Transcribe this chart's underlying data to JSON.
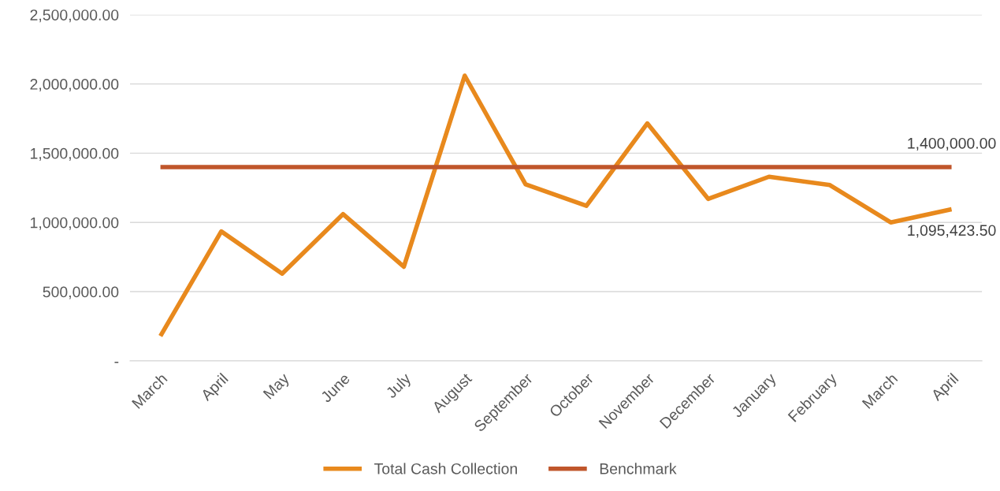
{
  "chart_data": {
    "type": "line",
    "categories": [
      "March",
      "April",
      "May",
      "June",
      "July",
      "August",
      "September",
      "October",
      "November",
      "December",
      "January",
      "February",
      "March",
      "April"
    ],
    "series": [
      {
        "name": "Total Cash Collection",
        "color": "#e8891d",
        "values": [
          180000,
          935000,
          630000,
          1060000,
          680000,
          2060000,
          1275000,
          1120000,
          1715000,
          1170000,
          1330000,
          1270000,
          1000000,
          1095423.5
        ],
        "value_labels": [
          null,
          null,
          null,
          null,
          null,
          null,
          null,
          null,
          null,
          null,
          null,
          null,
          null,
          "1,095,423.50"
        ]
      },
      {
        "name": "Benchmark",
        "color": "#c0562b",
        "values": [
          1400000,
          1400000,
          1400000,
          1400000,
          1400000,
          1400000,
          1400000,
          1400000,
          1400000,
          1400000,
          1400000,
          1400000,
          1400000,
          1400000
        ],
        "value_labels": [
          null,
          null,
          null,
          null,
          null,
          null,
          null,
          null,
          null,
          null,
          null,
          null,
          null,
          "1,400,000.00"
        ]
      }
    ],
    "ylim": [
      0,
      2500000
    ],
    "yticks": [
      {
        "value": 0,
        "label": "-"
      },
      {
        "value": 500000,
        "label": "500,000.00"
      },
      {
        "value": 1000000,
        "label": "1,000,000.00"
      },
      {
        "value": 1500000,
        "label": "1,500,000.00"
      },
      {
        "value": 2000000,
        "label": "2,000,000.00"
      },
      {
        "value": 2500000,
        "label": "2,500,000.00"
      }
    ],
    "grid": "y",
    "legend": "bottom",
    "marker": "none",
    "line_style": "solid"
  }
}
